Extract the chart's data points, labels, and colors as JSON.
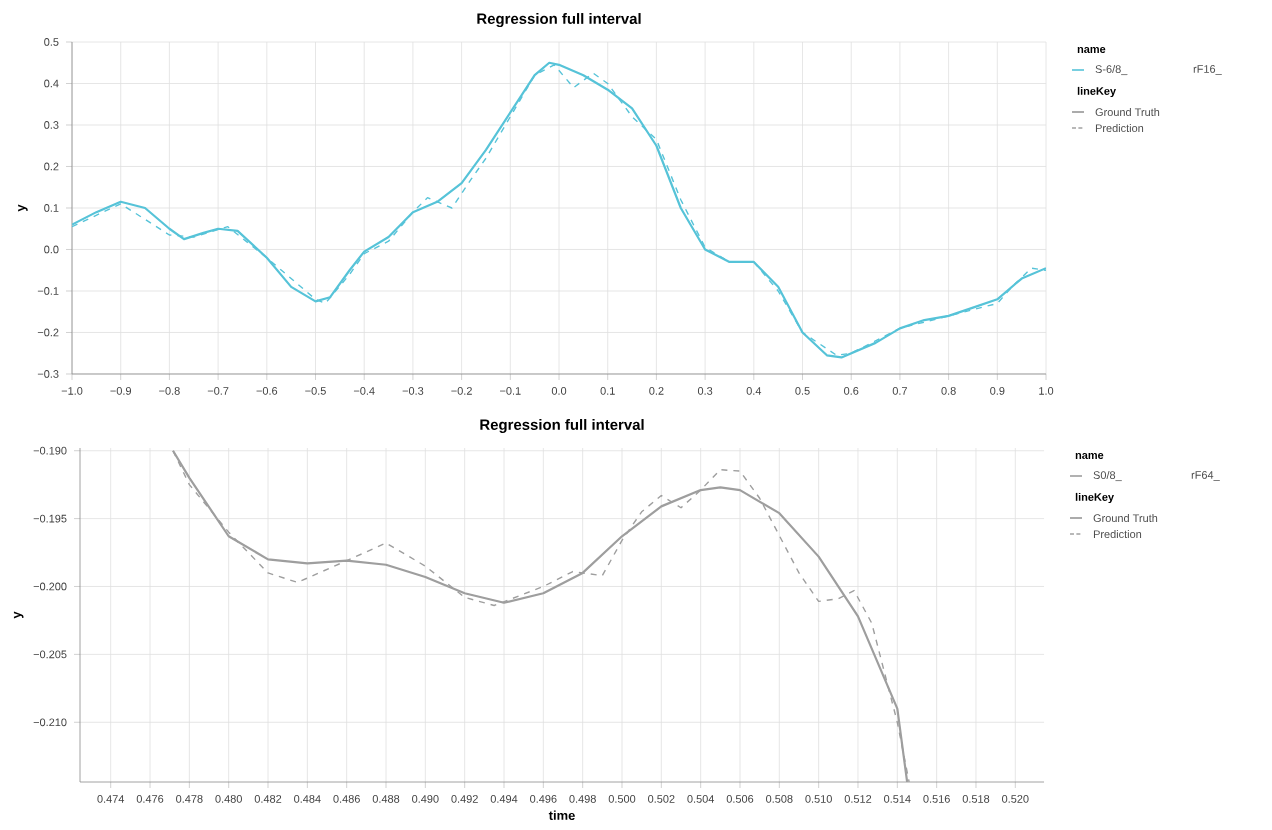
{
  "chart_data": [
    {
      "type": "line",
      "title": "Regression full interval",
      "ylabel": "y",
      "legend": "right",
      "legend_title": "name",
      "grid": true,
      "annotations": [
        "S-6/8_",
        "rF16_",
        "lineKey"
      ],
      "xlim": [
        -1,
        1
      ],
      "ylim": [
        -0.3,
        0.5
      ],
      "xticks": [
        {
          "value": -1,
          "label": "−1.0"
        },
        {
          "value": -0.9,
          "label": "−0.9"
        },
        {
          "value": -0.8,
          "label": "−0.8"
        },
        {
          "value": -0.7,
          "label": "−0.7"
        },
        {
          "value": -0.6,
          "label": "−0.6"
        },
        {
          "value": -0.5,
          "label": "−0.5"
        },
        {
          "value": -0.4,
          "label": "−0.4"
        },
        {
          "value": -0.3,
          "label": "−0.3"
        },
        {
          "value": -0.2,
          "label": "−0.2"
        },
        {
          "value": -0.1,
          "label": "−0.1"
        },
        {
          "value": 0,
          "label": "0.0"
        },
        0.1,
        0.2,
        0.3,
        0.4,
        0.5,
        0.6,
        0.7,
        0.8,
        0.9,
        {
          "value": 1,
          "label": "1.0"
        }
      ],
      "yticks": [
        {
          "value": -0.3,
          "label": "−0.3"
        },
        {
          "value": -0.2,
          "label": "−0.2"
        },
        {
          "value": -0.1,
          "label": "−0.1"
        },
        {
          "value": 0,
          "label": "0.0"
        },
        0.1,
        0.2,
        0.3,
        0.4,
        0.5
      ],
      "series": [
        {
          "name": "Ground Truth",
          "color": "#56c3d8",
          "line_style": "solid",
          "x": [
            -1.0,
            -0.95,
            -0.9,
            -0.85,
            -0.8,
            -0.77,
            -0.73,
            -0.7,
            -0.66,
            -0.6,
            -0.55,
            -0.5,
            -0.47,
            -0.43,
            -0.4,
            -0.35,
            -0.3,
            -0.25,
            -0.2,
            -0.15,
            -0.1,
            -0.05,
            -0.02,
            0.0,
            0.05,
            0.1,
            0.15,
            0.2,
            0.25,
            0.3,
            0.35,
            0.4,
            0.45,
            0.5,
            0.55,
            0.58,
            0.65,
            0.7,
            0.75,
            0.8,
            0.85,
            0.9,
            0.95,
            1.0
          ],
          "values": [
            0.06,
            0.09,
            0.115,
            0.1,
            0.05,
            0.025,
            0.04,
            0.05,
            0.045,
            -0.02,
            -0.09,
            -0.125,
            -0.115,
            -0.05,
            -0.005,
            0.03,
            0.09,
            0.115,
            0.16,
            0.24,
            0.33,
            0.42,
            0.45,
            0.445,
            0.42,
            0.385,
            0.34,
            0.25,
            0.1,
            0.0,
            -0.03,
            -0.03,
            -0.09,
            -0.2,
            -0.255,
            -0.26,
            -0.225,
            -0.19,
            -0.17,
            -0.16,
            -0.14,
            -0.12,
            -0.07,
            -0.045
          ]
        },
        {
          "name": "Prediction",
          "color": "#56c3d8",
          "line_style": "dashed",
          "x": [
            -1.0,
            -0.9,
            -0.8,
            -0.75,
            -0.68,
            -0.6,
            -0.5,
            -0.48,
            -0.43,
            -0.4,
            -0.35,
            -0.3,
            -0.27,
            -0.22,
            -0.18,
            -0.15,
            -0.1,
            -0.05,
            -0.01,
            0.03,
            0.07,
            0.1,
            0.15,
            0.2,
            0.25,
            0.3,
            0.35,
            0.4,
            0.45,
            0.5,
            0.57,
            0.6,
            0.7,
            0.8,
            0.85,
            0.9,
            0.93,
            0.97,
            1.0
          ],
          "values": [
            0.055,
            0.11,
            0.035,
            0.03,
            0.055,
            -0.02,
            -0.12,
            -0.13,
            -0.06,
            -0.01,
            0.02,
            0.09,
            0.125,
            0.1,
            0.17,
            0.22,
            0.32,
            0.42,
            0.445,
            0.39,
            0.425,
            0.4,
            0.32,
            0.265,
            0.12,
            0.005,
            -0.03,
            -0.03,
            -0.1,
            -0.2,
            -0.255,
            -0.25,
            -0.19,
            -0.16,
            -0.145,
            -0.13,
            -0.09,
            -0.045,
            -0.05
          ]
        }
      ]
    },
    {
      "type": "line",
      "title": "Regression full interval",
      "xlabel": "time",
      "ylabel": "y",
      "legend": "right",
      "legend_title": "name",
      "grid": true,
      "annotations": [
        "S0/8_",
        "rF64_",
        "lineKey"
      ],
      "xlim": [
        0.47244,
        0.52146
      ],
      "ylim": [
        -0.2144,
        -0.1898
      ],
      "xticks": [
        0.474,
        0.476,
        0.478,
        {
          "value": 0.48,
          "label": "0.480"
        },
        0.482,
        0.484,
        0.486,
        0.488,
        {
          "value": 0.49,
          "label": "0.490"
        },
        0.492,
        0.494,
        0.496,
        0.498,
        {
          "value": 0.5,
          "label": "0.500"
        },
        0.502,
        0.504,
        0.506,
        0.508,
        {
          "value": 0.51,
          "label": "0.510"
        },
        0.512,
        0.514,
        0.516,
        0.518,
        {
          "value": 0.52,
          "label": "0.520"
        }
      ],
      "yticks": [
        {
          "value": -0.21,
          "label": "−0.210"
        },
        {
          "value": -0.205,
          "label": "−0.205"
        },
        {
          "value": -0.2,
          "label": "−0.200"
        },
        {
          "value": -0.195,
          "label": "−0.195"
        },
        {
          "value": -0.19,
          "label": "−0.190"
        }
      ],
      "series": [
        {
          "name": "Ground Truth",
          "color": "#9e9e9e",
          "line_style": "solid",
          "x": [
            0.47717,
            0.478,
            0.48,
            0.482,
            0.484,
            0.486,
            0.488,
            0.49,
            0.492,
            0.494,
            0.496,
            0.498,
            0.5,
            0.502,
            0.504,
            0.505,
            0.506,
            0.508,
            0.51,
            0.512,
            0.514,
            0.5145
          ],
          "values": [
            -0.19,
            -0.192,
            -0.1963,
            -0.198,
            -0.1983,
            -0.1981,
            -0.1984,
            -0.1993,
            -0.2005,
            -0.2012,
            -0.2005,
            -0.199,
            -0.1963,
            -0.1941,
            -0.1929,
            -0.1927,
            -0.1929,
            -0.1946,
            -0.1978,
            -0.2022,
            -0.209,
            -0.2144
          ]
        },
        {
          "name": "Prediction",
          "color": "#9e9e9e",
          "line_style": "dashed",
          "x": [
            0.47717,
            0.478,
            0.48,
            0.482,
            0.4835,
            0.486,
            0.488,
            0.49,
            0.492,
            0.4935,
            0.496,
            0.4975,
            0.499,
            0.5,
            0.501,
            0.502,
            0.503,
            0.504,
            0.505,
            0.506,
            0.507,
            0.509,
            0.51,
            0.511,
            0.5118,
            0.5127,
            0.514,
            0.5146
          ],
          "values": [
            -0.19,
            -0.1925,
            -0.196,
            -0.199,
            -0.1997,
            -0.1981,
            -0.1968,
            -0.1985,
            -0.2008,
            -0.2014,
            -0.2,
            -0.1989,
            -0.1992,
            -0.1966,
            -0.1945,
            -0.1933,
            -0.1942,
            -0.1929,
            -0.1914,
            -0.1915,
            -0.1935,
            -0.199,
            -0.2011,
            -0.2009,
            -0.2003,
            -0.2027,
            -0.21,
            -0.2144
          ]
        }
      ]
    }
  ]
}
